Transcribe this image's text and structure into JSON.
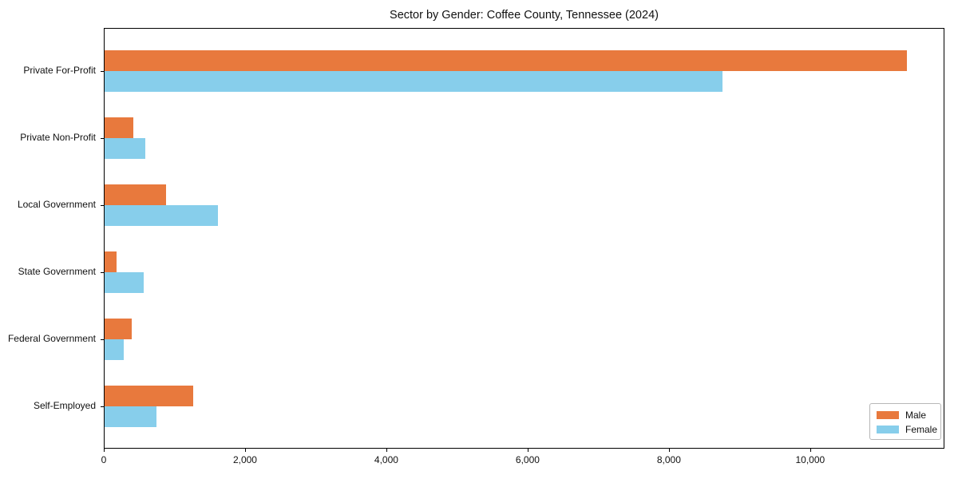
{
  "title": "Sector by Gender: Coffee County, Tennessee (2024)",
  "colors": {
    "male": "#E8793D",
    "female": "#87CEEB",
    "axis": "#000000",
    "legend_border": "#B7B7B7",
    "background": "#FFFFFF"
  },
  "chart_data": {
    "type": "bar",
    "orientation": "horizontal",
    "title": "Sector by Gender: Coffee County, Tennessee (2024)",
    "categories": [
      "Private For-Profit",
      "Private Non-Profit",
      "Local Government",
      "State Government",
      "Federal Government",
      "Self-Employed"
    ],
    "series": [
      {
        "name": "Male",
        "color": "#E8793D",
        "values": [
          11360,
          410,
          870,
          175,
          385,
          1255
        ]
      },
      {
        "name": "Female",
        "color": "#87CEEB",
        "values": [
          8750,
          575,
          1610,
          555,
          275,
          735
        ]
      }
    ],
    "xlabel": "",
    "ylabel": "",
    "xlim": [
      0,
      11900
    ],
    "x_ticks": [
      0,
      2000,
      4000,
      6000,
      8000,
      10000
    ],
    "x_tick_labels": [
      "0",
      "2,000",
      "4,000",
      "6,000",
      "8,000",
      "10,000"
    ],
    "grid": false,
    "legend": {
      "position": "lower right",
      "entries": [
        "Male",
        "Female"
      ]
    }
  }
}
